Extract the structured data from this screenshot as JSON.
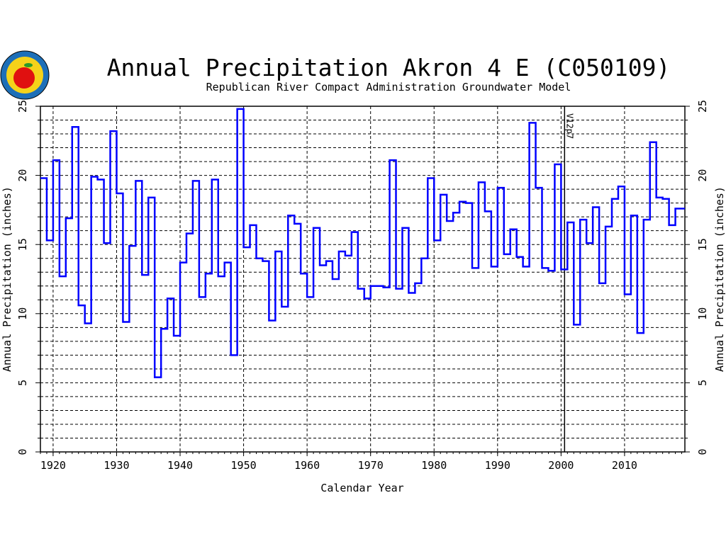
{
  "chart_data": {
    "type": "line",
    "style": "step",
    "title": "Annual Precipitation Akron 4 E (C050109)",
    "subtitle": "Republican River Compact Administration Groundwater Model",
    "xlabel": "Calendar Year",
    "ylabel": "Annual Precipitation (inches)",
    "ylabel_right": "Annual Precipitation (inches)",
    "xlim": [
      1918,
      2019.5
    ],
    "ylim": [
      0,
      25
    ],
    "xticks": [
      1920,
      1930,
      1940,
      1950,
      1960,
      1970,
      1980,
      1990,
      2000,
      2010
    ],
    "yticks": [
      0,
      5,
      10,
      15,
      20,
      25
    ],
    "grid": true,
    "series_color": "#0000ff",
    "marker_line": {
      "x": 2001,
      "label": "V12p7"
    },
    "series": [
      {
        "name": "Annual Precipitation",
        "start_year": 1918,
        "values": [
          19.8,
          15.3,
          21.1,
          12.7,
          16.9,
          23.5,
          10.6,
          9.3,
          19.9,
          19.7,
          15.1,
          23.2,
          18.7,
          9.4,
          14.9,
          19.6,
          12.8,
          18.4,
          5.4,
          8.9,
          11.1,
          8.4,
          13.7,
          15.8,
          19.6,
          11.2,
          12.9,
          19.7,
          12.7,
          13.7,
          7.0,
          24.8,
          14.8,
          16.4,
          14.0,
          13.8,
          9.5,
          14.5,
          10.5,
          17.1,
          16.5,
          12.9,
          11.2,
          16.2,
          13.5,
          13.8,
          12.5,
          14.5,
          14.2,
          15.9,
          11.8,
          11.1,
          12.0,
          12.0,
          11.9,
          21.1,
          11.8,
          16.2,
          11.5,
          12.2,
          14.0,
          19.8,
          15.3,
          18.6,
          16.7,
          17.3,
          18.1,
          18.0,
          13.3,
          19.5,
          17.4,
          13.4,
          19.1,
          14.3,
          16.1,
          14.1,
          13.4,
          23.8,
          19.1,
          13.3,
          13.1,
          20.8,
          13.2,
          16.6,
          9.2,
          16.8,
          15.1,
          17.7,
          12.2,
          16.3,
          18.3,
          19.2,
          11.4,
          17.1,
          8.6,
          16.8,
          22.4,
          18.4,
          18.3,
          16.4,
          17.6
        ]
      }
    ]
  },
  "logo": {
    "text": "Republican River Compact"
  }
}
